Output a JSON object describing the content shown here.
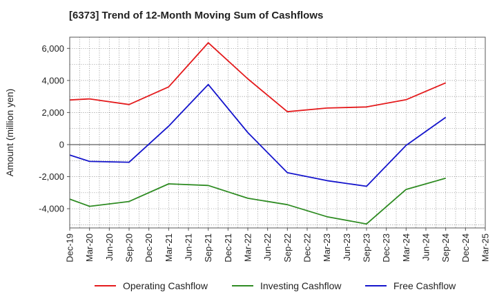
{
  "chart_data": {
    "type": "line",
    "title": "[6373]  Trend of 12-Month Moving Sum of Cashflows",
    "ylabel": "Amount (million yen)",
    "xlabel": "",
    "x": [
      "Dec-19",
      "Mar-20",
      "Jun-20",
      "Sep-20",
      "Dec-20",
      "Mar-21",
      "Jun-21",
      "Sep-21",
      "Dec-21",
      "Mar-22",
      "Jun-22",
      "Sep-22",
      "Dec-22",
      "Mar-23",
      "Jun-23",
      "Sep-23",
      "Dec-23",
      "Mar-24",
      "Jun-24",
      "Sep-24",
      "Dec-24",
      "Mar-25"
    ],
    "yticks": [
      6000,
      4000,
      2000,
      0,
      -2000,
      -4000
    ],
    "ytick_labels": [
      "6,000",
      "4,000",
      "2,000",
      "0",
      "-2,000",
      "-4,000"
    ],
    "ylim": [
      -5200,
      6700
    ],
    "grid": true,
    "legend_position": "bottom",
    "series": [
      {
        "name": "Operating Cashflow",
        "color": "#e41a1c",
        "points": [
          [
            "Dec-19",
            2780
          ],
          [
            "Mar-20",
            2850
          ],
          [
            "Sep-20",
            2500
          ],
          [
            "Mar-21",
            3600
          ],
          [
            "Sep-21",
            6350
          ],
          [
            "Mar-22",
            4100
          ],
          [
            "Sep-22",
            2050
          ],
          [
            "Mar-23",
            2280
          ],
          [
            "Sep-23",
            2350
          ],
          [
            "Mar-24",
            2800
          ],
          [
            "Sep-24",
            3850
          ]
        ]
      },
      {
        "name": "Investing Cashflow",
        "color": "#2e8b22",
        "points": [
          [
            "Dec-19",
            -3400
          ],
          [
            "Mar-20",
            -3850
          ],
          [
            "Sep-20",
            -3550
          ],
          [
            "Mar-21",
            -2450
          ],
          [
            "Sep-21",
            -2550
          ],
          [
            "Mar-22",
            -3350
          ],
          [
            "Sep-22",
            -3750
          ],
          [
            "Mar-23",
            -4500
          ],
          [
            "Sep-23",
            -4950
          ],
          [
            "Mar-24",
            -2800
          ],
          [
            "Sep-24",
            -2100
          ]
        ]
      },
      {
        "name": "Free Cashflow",
        "color": "#1414cc",
        "points": [
          [
            "Dec-19",
            -650
          ],
          [
            "Mar-20",
            -1050
          ],
          [
            "Sep-20",
            -1100
          ],
          [
            "Mar-21",
            1150
          ],
          [
            "Sep-21",
            3750
          ],
          [
            "Mar-22",
            750
          ],
          [
            "Sep-22",
            -1750
          ],
          [
            "Mar-23",
            -2250
          ],
          [
            "Sep-23",
            -2600
          ],
          [
            "Mar-24",
            -50
          ],
          [
            "Sep-24",
            1700
          ]
        ]
      }
    ]
  }
}
